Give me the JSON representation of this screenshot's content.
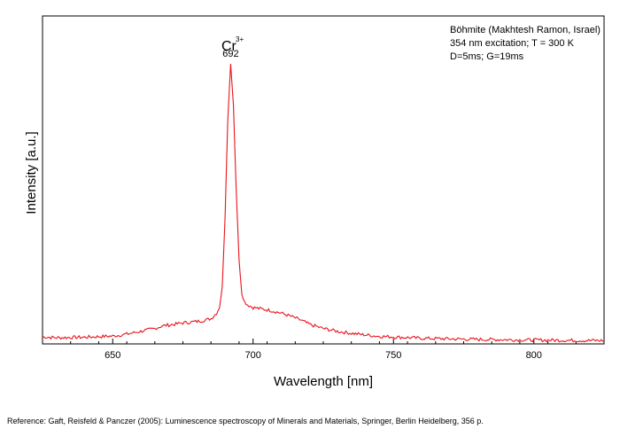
{
  "chart_data": {
    "type": "line",
    "title": "",
    "xlabel": "Wavelength [nm]",
    "ylabel": "Intensity [a.u.]",
    "xlim": [
      625,
      825
    ],
    "ylim": [
      0,
      1
    ],
    "xticks": [
      650,
      700,
      750,
      800
    ],
    "yticks": [],
    "grid": false,
    "legend": "none",
    "series": [
      {
        "color": "#e8141c",
        "x": [
          625,
          630,
          640,
          650,
          655,
          660,
          665,
          668,
          672,
          675,
          678,
          680,
          683,
          685,
          687,
          688,
          689,
          690,
          691,
          692,
          693,
          694,
          695,
          696,
          697,
          698,
          700,
          703,
          706,
          710,
          713,
          717,
          720,
          725,
          730,
          735,
          740,
          745,
          750,
          760,
          770,
          780,
          790,
          800,
          810,
          820,
          825
        ],
        "y": [
          0.025,
          0.022,
          0.024,
          0.028,
          0.035,
          0.045,
          0.055,
          0.065,
          0.07,
          0.075,
          0.078,
          0.08,
          0.085,
          0.09,
          0.11,
          0.13,
          0.2,
          0.45,
          0.8,
          1.0,
          0.85,
          0.55,
          0.3,
          0.18,
          0.15,
          0.14,
          0.13,
          0.125,
          0.12,
          0.11,
          0.1,
          0.085,
          0.07,
          0.055,
          0.045,
          0.038,
          0.032,
          0.027,
          0.025,
          0.02,
          0.018,
          0.016,
          0.015,
          0.014,
          0.013,
          0.012,
          0.012
        ]
      }
    ],
    "annotations": {
      "ion_label": "Cr",
      "ion_charge": "3+",
      "peak_label": "692",
      "peak_x": 692
    },
    "info_box": [
      "Böhmite (Makhtesh Ramon, Israel)",
      "354 nm excitation; T = 300 K",
      "D=5ms; G=19ms"
    ]
  },
  "reference": "Reference: Gaft, Reisfeld & Panczer (2005): Luminescence spectroscopy of Minerals and Materials, Springer, Berlin Heidelberg, 356 p."
}
